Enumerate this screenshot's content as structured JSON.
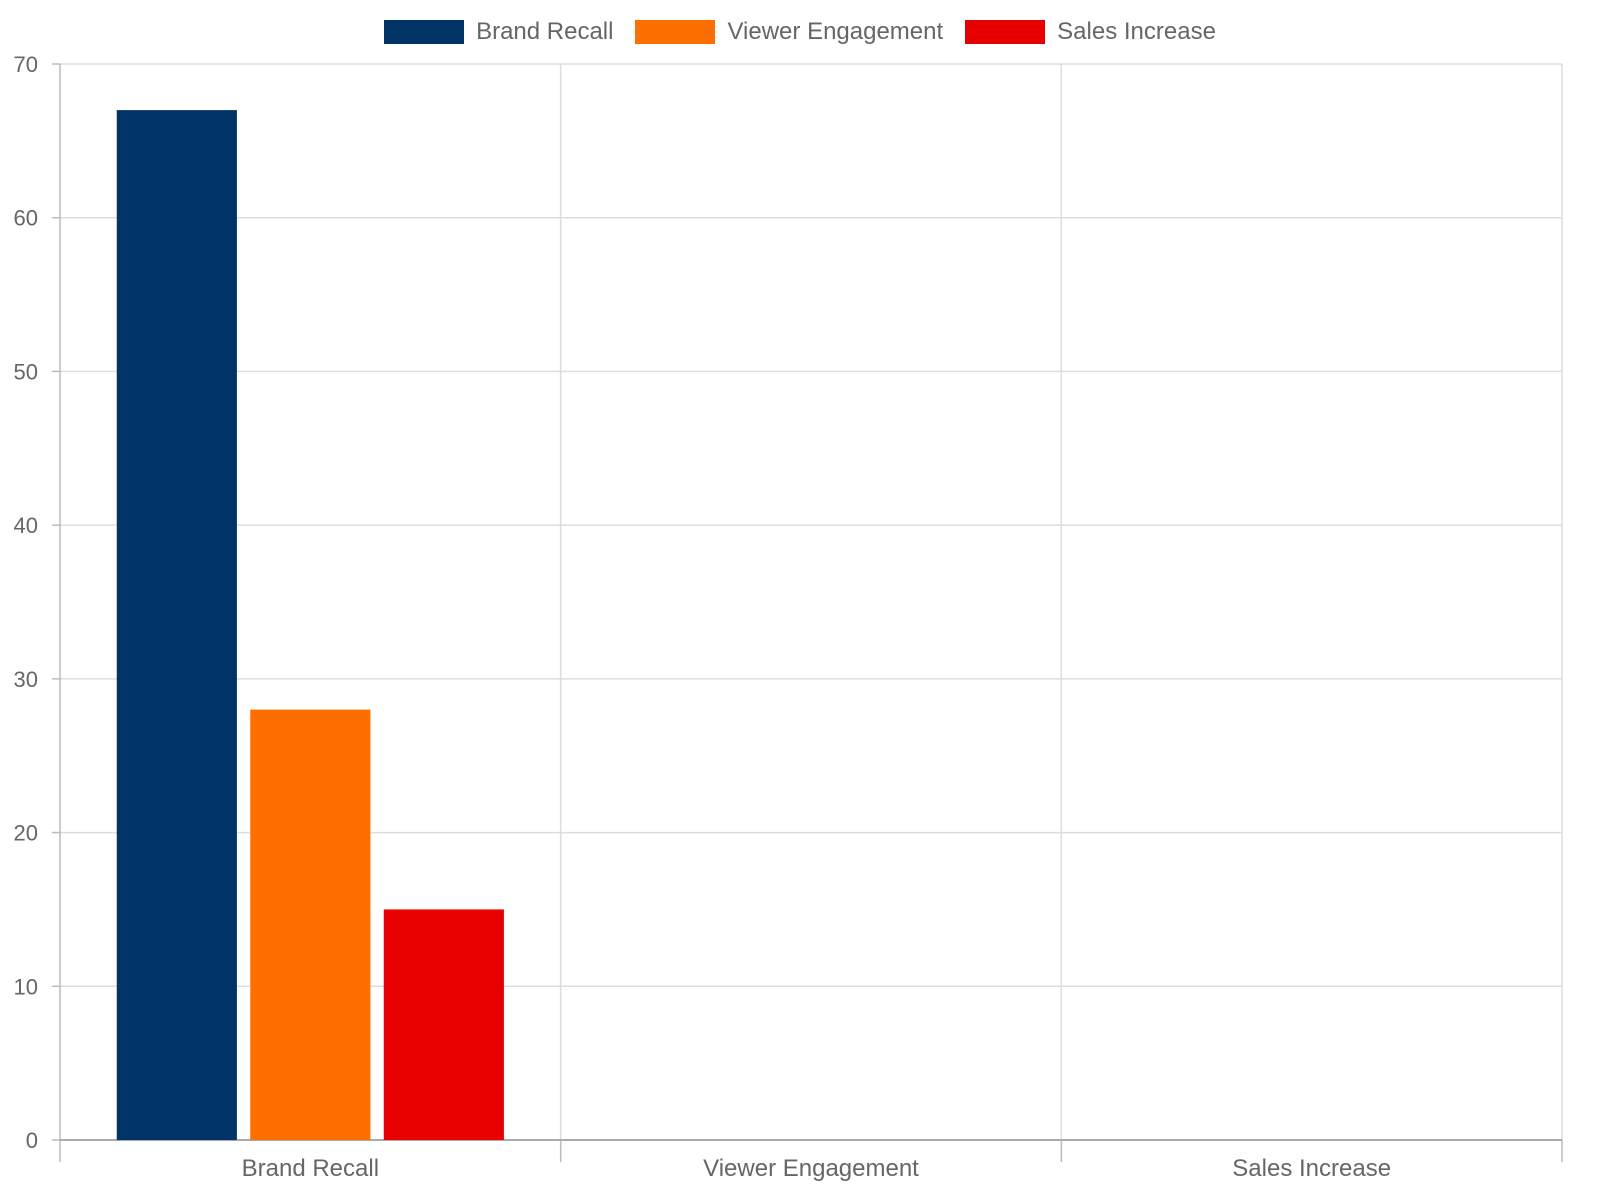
{
  "chart_data": {
    "type": "bar",
    "categories": [
      "Brand Recall",
      "Viewer Engagement",
      "Sales Increase"
    ],
    "series": [
      {
        "name": "Brand Recall",
        "values": [
          67,
          null,
          null
        ],
        "color": "#003366"
      },
      {
        "name": "Viewer Engagement",
        "values": [
          28,
          null,
          null
        ],
        "color": "#FF6F00"
      },
      {
        "name": "Sales Increase",
        "values": [
          15,
          null,
          null
        ],
        "color": "#E60000"
      }
    ],
    "title": "",
    "xlabel": "",
    "ylabel": "",
    "ylim": [
      0,
      70
    ],
    "yticks": [
      0,
      10,
      20,
      30,
      40,
      50,
      60,
      70
    ],
    "grid": true,
    "legend": "top-center"
  }
}
